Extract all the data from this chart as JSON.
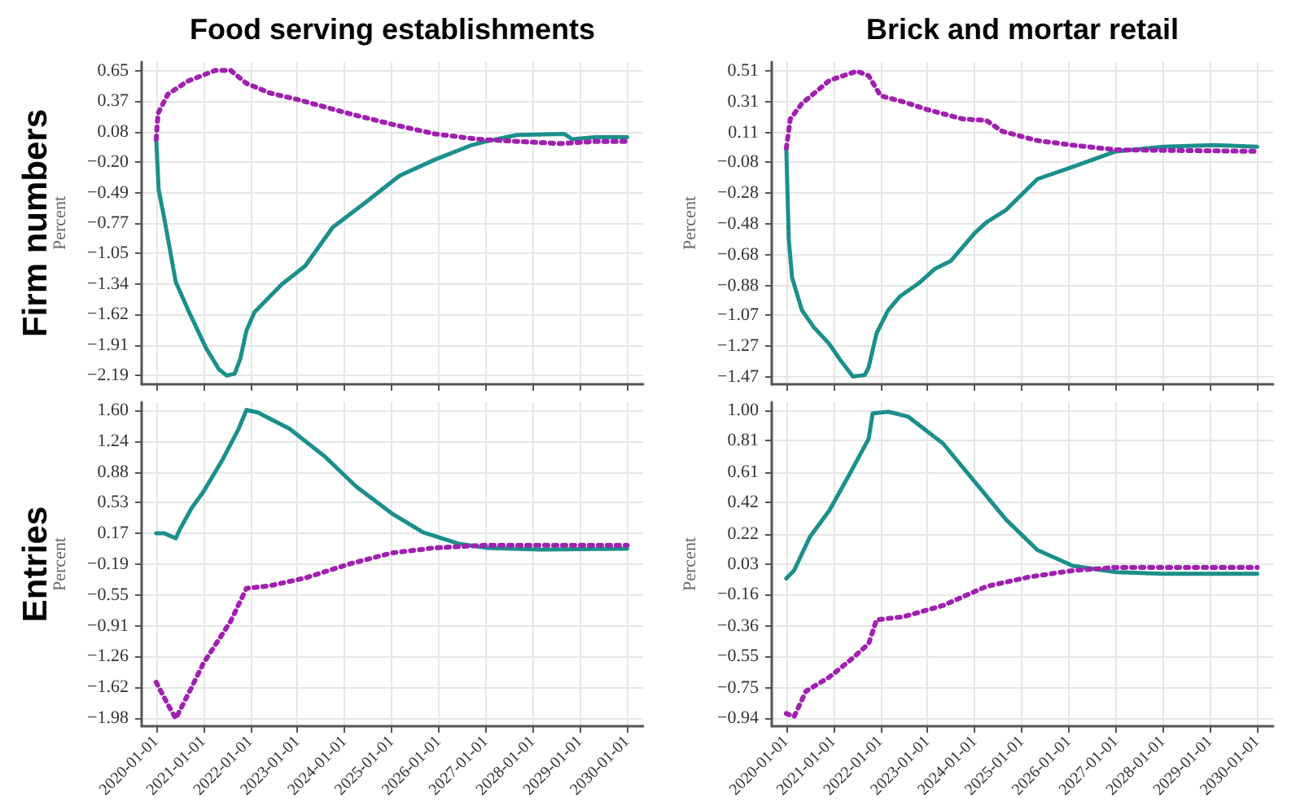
{
  "chart_data": [
    {
      "type": "line",
      "title": "Food serving establishments",
      "ylabel": "Percent",
      "annotations": [
        "Firm numbers"
      ],
      "grid": true,
      "tick_labels": "y",
      "xlim": [
        "2019-09-10",
        "2030-05-05"
      ],
      "ylim": [
        -2.27,
        0.73
      ],
      "xticks": [
        "2020-01-01",
        "2021-01-01",
        "2022-01-01",
        "2023-01-01",
        "2024-01-01",
        "2025-01-01",
        "2026-01-01",
        "2027-01-01",
        "2028-01-01",
        "2029-01-01",
        "2030-01-01"
      ],
      "yticks": [
        0.65,
        0.37,
        0.08,
        {
          "value": -0.2,
          "label": "−0.20"
        },
        {
          "value": -0.49,
          "label": "−0.49"
        },
        {
          "value": -0.77,
          "label": "−0.77"
        },
        {
          "value": -1.05,
          "label": "−1.05"
        },
        {
          "value": -1.34,
          "label": "−1.34"
        },
        {
          "value": -1.62,
          "label": "−1.62"
        },
        {
          "value": -1.91,
          "label": "−1.91"
        },
        {
          "value": -2.19,
          "label": "−2.19"
        }
      ],
      "series": [
        {
          "color": "#1b8f8c",
          "line_style": "solid",
          "x": [
            "2020-01-01",
            "2020-01-20",
            "2020-03-01",
            "2020-06-01",
            "2020-09-01",
            "2021-01-20",
            "2021-05-01",
            "2021-07-01",
            "2021-09-01",
            "2021-10-15",
            "2021-12-01",
            "2022-02-01",
            "2022-09-01",
            "2023-03-01",
            "2023-10-01",
            "2024-07-01",
            "2025-03-01",
            "2025-12-01",
            "2026-09-01",
            "2027-01-01",
            "2027-09-01",
            "2028-09-01",
            "2028-11-01",
            "2029-05-01",
            "2030-01-01"
          ],
          "values": [
            0.01,
            -0.46,
            -0.71,
            -1.32,
            -1.57,
            -1.93,
            -2.13,
            -2.19,
            -2.17,
            -2.03,
            -1.77,
            -1.6,
            -1.34,
            -1.17,
            -0.81,
            -0.56,
            -0.33,
            -0.18,
            -0.05,
            -0.01,
            0.05,
            0.06,
            0.01,
            0.03,
            0.03
          ]
        },
        {
          "color": "#a020b0",
          "line_style": "dotted",
          "x": [
            "2020-01-01",
            "2020-01-15",
            "2020-04-01",
            "2020-09-01",
            "2021-04-01",
            "2021-08-01",
            "2021-12-01",
            "2022-06-01",
            "2023-01-01",
            "2024-02-01",
            "2025-01-01",
            "2025-12-01",
            "2026-11-01",
            "2027-09-01",
            "2028-08-01",
            "2029-05-01",
            "2030-01-01"
          ],
          "values": [
            0.01,
            0.25,
            0.43,
            0.55,
            0.65,
            0.65,
            0.53,
            0.44,
            0.38,
            0.25,
            0.15,
            0.06,
            0.01,
            -0.01,
            -0.03,
            -0.01,
            -0.01
          ]
        }
      ]
    },
    {
      "type": "line",
      "title": "Brick and mortar retail",
      "ylabel": "Percent",
      "grid": true,
      "tick_labels": "y",
      "xlim": [
        "2019-09-10",
        "2030-05-05"
      ],
      "ylim": [
        -1.52,
        0.57
      ],
      "xticks": [
        "2020-01-01",
        "2021-01-01",
        "2022-01-01",
        "2023-01-01",
        "2024-01-01",
        "2025-01-01",
        "2026-01-01",
        "2027-01-01",
        "2028-01-01",
        "2029-01-01",
        "2030-01-01"
      ],
      "yticks": [
        0.51,
        0.31,
        0.11,
        {
          "value": -0.08,
          "label": "−0.08"
        },
        {
          "value": -0.28,
          "label": "−0.28"
        },
        {
          "value": -0.48,
          "label": "−0.48"
        },
        {
          "value": -0.68,
          "label": "−0.68"
        },
        {
          "value": -0.88,
          "label": "−0.88"
        },
        {
          "value": -1.07,
          "label": "−1.07"
        },
        {
          "value": -1.27,
          "label": "−1.27"
        },
        {
          "value": -1.47,
          "label": "−1.47"
        }
      ],
      "series": [
        {
          "color": "#1b8f8c",
          "line_style": "solid",
          "x": [
            "2020-01-01",
            "2020-01-20",
            "2020-02-15",
            "2020-05-01",
            "2020-08-01",
            "2020-12-01",
            "2021-03-01",
            "2021-06-01",
            "2021-09-01",
            "2021-10-01",
            "2021-12-01",
            "2022-03-01",
            "2022-06-01",
            "2022-11-01",
            "2023-03-01",
            "2023-07-01",
            "2024-01-01",
            "2024-04-01",
            "2024-09-01",
            "2025-05-01",
            "2026-02-01",
            "2027-01-01",
            "2028-01-01",
            "2029-02-01",
            "2030-01-01"
          ],
          "values": [
            0.01,
            -0.58,
            -0.83,
            -1.04,
            -1.15,
            -1.26,
            -1.37,
            -1.47,
            -1.46,
            -1.41,
            -1.19,
            -1.04,
            -0.95,
            -0.86,
            -0.77,
            -0.72,
            -0.54,
            -0.47,
            -0.39,
            -0.19,
            -0.11,
            -0.01,
            0.02,
            0.03,
            0.02
          ]
        },
        {
          "color": "#a020b0",
          "line_style": "dotted",
          "x": [
            "2020-01-01",
            "2020-02-01",
            "2020-05-01",
            "2020-12-01",
            "2021-07-01",
            "2021-10-01",
            "2022-01-01",
            "2022-07-01",
            "2023-01-01",
            "2023-10-01",
            "2024-04-01",
            "2024-08-01",
            "2025-05-01",
            "2026-02-01",
            "2027-01-01",
            "2030-01-01"
          ],
          "values": [
            0.01,
            0.2,
            0.3,
            0.45,
            0.51,
            0.48,
            0.35,
            0.31,
            0.26,
            0.2,
            0.19,
            0.12,
            0.06,
            0.03,
            0.0,
            -0.01
          ]
        }
      ]
    },
    {
      "type": "line",
      "ylabel": "Percent",
      "annotations": [
        "Entries"
      ],
      "grid": true,
      "xlim": [
        "2019-09-10",
        "2030-05-05"
      ],
      "ylim": [
        -2.07,
        1.69
      ],
      "xticks": [
        "2020-01-01",
        "2021-01-01",
        "2022-01-01",
        "2023-01-01",
        "2024-01-01",
        "2025-01-01",
        "2026-01-01",
        "2027-01-01",
        "2028-01-01",
        "2029-01-01",
        "2030-01-01"
      ],
      "yticks": [
        {
          "value": 1.6,
          "label": "1.60"
        },
        1.24,
        0.88,
        0.53,
        0.17,
        {
          "value": -0.19,
          "label": "−0.19"
        },
        {
          "value": -0.55,
          "label": "−0.55"
        },
        {
          "value": -0.91,
          "label": "−0.91"
        },
        {
          "value": -1.26,
          "label": "−1.26"
        },
        {
          "value": -1.62,
          "label": "−1.62"
        },
        {
          "value": -1.98,
          "label": "−1.98"
        }
      ],
      "series": [
        {
          "color": "#1b8f8c",
          "line_style": "solid",
          "x": [
            "2020-01-01",
            "2020-03-01",
            "2020-06-01",
            "2020-07-01",
            "2020-10-01",
            "2021-01-01",
            "2021-06-01",
            "2021-10-01",
            "2021-12-01",
            "2022-03-01",
            "2022-11-01",
            "2023-08-01",
            "2024-04-01",
            "2025-01-01",
            "2025-09-01",
            "2026-06-01",
            "2027-01-01",
            "2028-03-01",
            "2030-01-01"
          ],
          "values": [
            0.17,
            0.17,
            0.11,
            0.21,
            0.46,
            0.65,
            1.03,
            1.38,
            1.6,
            1.57,
            1.38,
            1.06,
            0.71,
            0.4,
            0.18,
            0.05,
            0.0,
            -0.02,
            -0.01
          ]
        },
        {
          "color": "#a020b0",
          "line_style": "dotted",
          "x": [
            "2020-01-01",
            "2020-04-01",
            "2020-06-01",
            "2020-10-01",
            "2021-01-01",
            "2021-08-01",
            "2021-12-01",
            "2022-06-01",
            "2023-03-01",
            "2024-02-01",
            "2025-01-01",
            "2025-12-01",
            "2027-01-01",
            "2030-01-01"
          ],
          "values": [
            -1.56,
            -1.82,
            -1.98,
            -1.62,
            -1.34,
            -0.85,
            -0.47,
            -0.44,
            -0.35,
            -0.19,
            -0.06,
            0.0,
            0.03,
            0.03
          ]
        }
      ]
    },
    {
      "type": "line",
      "ylabel": "Percent",
      "grid": true,
      "xlim": [
        "2019-09-10",
        "2030-05-05"
      ],
      "ylim": [
        -0.99,
        1.05
      ],
      "xticks": [
        "2020-01-01",
        "2021-01-01",
        "2022-01-01",
        "2023-01-01",
        "2024-01-01",
        "2025-01-01",
        "2026-01-01",
        "2027-01-01",
        "2028-01-01",
        "2029-01-01",
        "2030-01-01"
      ],
      "yticks": [
        {
          "value": 1.0,
          "label": "1.00"
        },
        0.81,
        0.61,
        0.42,
        0.22,
        0.03,
        {
          "value": -0.16,
          "label": "−0.16"
        },
        {
          "value": -0.36,
          "label": "−0.36"
        },
        {
          "value": -0.55,
          "label": "−0.55"
        },
        {
          "value": -0.75,
          "label": "−0.75"
        },
        {
          "value": -0.94,
          "label": "−0.94"
        }
      ],
      "series": [
        {
          "color": "#1b8f8c",
          "line_style": "solid",
          "x": [
            "2020-01-01",
            "2020-03-01",
            "2020-07-01",
            "2020-12-01",
            "2021-05-01",
            "2021-10-01",
            "2021-11-01",
            "2022-03-01",
            "2022-08-01",
            "2023-05-01",
            "2024-01-01",
            "2024-09-01",
            "2025-05-01",
            "2026-02-01",
            "2027-01-01",
            "2028-01-01",
            "2030-01-01"
          ],
          "values": [
            -0.06,
            -0.01,
            0.2,
            0.37,
            0.59,
            0.82,
            0.98,
            0.99,
            0.96,
            0.79,
            0.55,
            0.31,
            0.12,
            0.02,
            -0.02,
            -0.03,
            -0.03
          ]
        },
        {
          "color": "#a020b0",
          "line_style": "dotted",
          "x": [
            "2020-01-01",
            "2020-03-01",
            "2020-06-01",
            "2020-12-01",
            "2021-06-01",
            "2021-10-01",
            "2021-12-01",
            "2022-07-01",
            "2023-05-01",
            "2024-04-01",
            "2025-03-01",
            "2026-02-01",
            "2027-01-01",
            "2030-01-01"
          ],
          "values": [
            -0.91,
            -0.93,
            -0.77,
            -0.68,
            -0.56,
            -0.47,
            -0.32,
            -0.3,
            -0.23,
            -0.11,
            -0.05,
            -0.01,
            0.01,
            0.01
          ]
        }
      ]
    }
  ]
}
